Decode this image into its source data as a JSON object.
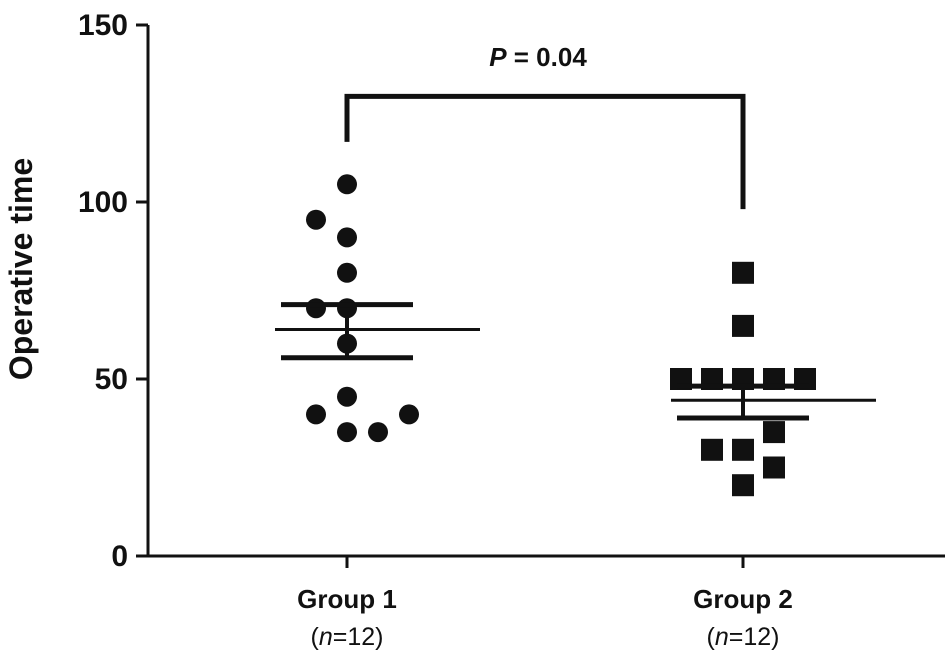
{
  "chart_data": {
    "type": "scatter",
    "ylabel": "Operative time",
    "ylim": [
      0,
      150
    ],
    "yticks": [
      0,
      50,
      100,
      150
    ],
    "categories": [
      "Group 1",
      "Group 2"
    ],
    "category_notes": [
      {
        "prefix": "(",
        "italic": "n",
        "suffix": "=12)"
      },
      {
        "prefix": "(",
        "italic": "n",
        "suffix": "=12)"
      }
    ],
    "series": [
      {
        "category": "Group 1",
        "marker": "circle",
        "points": [
          {
            "offset": 0,
            "value": 105
          },
          {
            "offset": -1,
            "value": 95
          },
          {
            "offset": 0,
            "value": 90
          },
          {
            "offset": 0,
            "value": 80
          },
          {
            "offset": -1,
            "value": 70
          },
          {
            "offset": 0,
            "value": 70
          },
          {
            "offset": 0,
            "value": 60
          },
          {
            "offset": 0,
            "value": 45
          },
          {
            "offset": -1,
            "value": 40
          },
          {
            "offset": 2,
            "value": 40
          },
          {
            "offset": 0,
            "value": 35
          },
          {
            "offset": 1,
            "value": 35
          }
        ],
        "mean": 64,
        "sem_upper": 71,
        "sem_lower": 56
      },
      {
        "category": "Group 2",
        "marker": "square",
        "points": [
          {
            "offset": 0,
            "value": 80
          },
          {
            "offset": 0,
            "value": 65
          },
          {
            "offset": -2,
            "value": 50
          },
          {
            "offset": -1,
            "value": 50
          },
          {
            "offset": 0,
            "value": 50
          },
          {
            "offset": 1,
            "value": 50
          },
          {
            "offset": 2,
            "value": 50
          },
          {
            "offset": 1,
            "value": 35
          },
          {
            "offset": -1,
            "value": 30
          },
          {
            "offset": 0,
            "value": 30
          },
          {
            "offset": 1,
            "value": 25
          },
          {
            "offset": 0,
            "value": 20
          }
        ],
        "mean": 44,
        "sem_upper": 48,
        "sem_lower": 39
      }
    ],
    "annotation": {
      "p_italic": "P",
      "p_text": " = 0.04",
      "bracket_y": 127
    },
    "colors": {
      "marks": "#111111"
    },
    "grid": false
  }
}
